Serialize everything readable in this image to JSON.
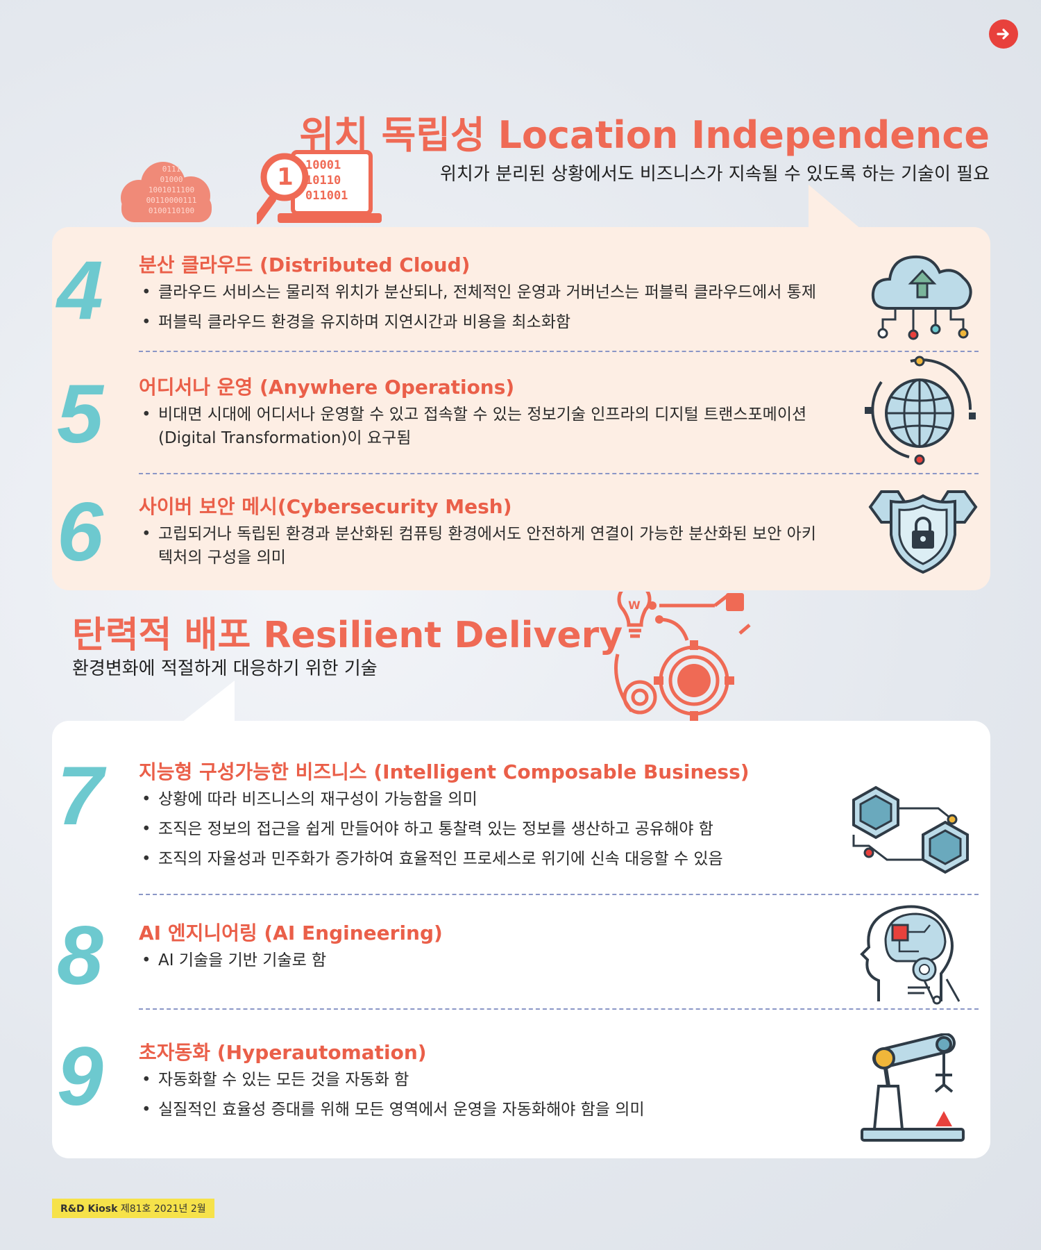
{
  "nav": {
    "next_icon": "arrow-right-icon"
  },
  "location": {
    "title": "위치 독립성 Location Independence",
    "subtitle": "위치가 분리된 상황에서도 비즈니스가 지속될 수 있도록 하는 기술이 필요",
    "illustration": {
      "binary_rows": [
        "10001",
        "10110",
        "011001"
      ],
      "cloud_rows": [
        "0111",
        "01000",
        "1001011100",
        "00110000111",
        "0100110100"
      ],
      "badge": "1"
    }
  },
  "items_location": [
    {
      "number": "4",
      "title": "분산 클라우드 (Distributed Cloud)",
      "bullets": [
        "클라우드 서비스는 물리적 위치가 분산되나, 전체적인 운영과 거버넌스는 퍼블릭 클라우드에서 통제",
        "퍼블릭 클라우드 환경을 유지하며 지연시간과 비용을 최소화함"
      ],
      "icon": "cloud-network-icon"
    },
    {
      "number": "5",
      "title": "어디서나 운영 (Anywhere Operations)",
      "bullets": [
        "비대면 시대에 어디서나 운영할 수 있고 접속할 수 있는 정보기술 인프라의 디지털 트랜스포메이션 (Digital Transformation)이 요구됨"
      ],
      "icon": "globe-network-icon"
    },
    {
      "number": "6",
      "title": "사이버 보안 메시(Cybersecurity Mesh)",
      "bullets": [
        "고립되거나 독립된 환경과 분산화된 컴퓨팅 환경에서도 안전하게 연결이 가능한 분산화된 보안 아키텍처의 구성을 의미"
      ],
      "icon": "shield-lock-icon"
    }
  ],
  "resilient": {
    "title": "탄력적 배포 Resilient Delivery",
    "subtitle": "환경변화에 적절하게 대응하기 위한 기술",
    "illustration": {
      "bulb_letter": "W"
    }
  },
  "items_resilient": [
    {
      "number": "7",
      "title": "지능형 구성가능한 비즈니스 (Intelligent Composable Business)",
      "bullets": [
        "상황에 따라 비즈니스의 재구성이 가능함을 의미",
        "조직은 정보의 접근을 쉽게 만들어야 하고 통찰력 있는 정보를 생산하고 공유해야 함",
        "조직의 자율성과 민주화가 증가하여 효율적인 프로세스로 위기에 신속 대응할 수 있음"
      ],
      "icon": "linked-cubes-icon"
    },
    {
      "number": "8",
      "title": "AI 엔지니어링 (AI Engineering)",
      "bullets": [
        "AI 기술을 기반 기술로 함"
      ],
      "icon": "ai-head-icon"
    },
    {
      "number": "9",
      "title": "초자동화 (Hyperautomation)",
      "bullets": [
        "자동화할 수 있는 모든 것을 자동화 함",
        "실질적인 효율성 증대를 위해 모든 영역에서 운영을 자동화해야 함을 의미"
      ],
      "icon": "robot-arm-icon"
    }
  ],
  "footer": {
    "brand": "R&D Kiosk",
    "issue": "제81호 2021년 2월"
  },
  "colors": {
    "accent": "#ef6a55",
    "teal": "#6dc9cf",
    "peach": "#fdeee4",
    "divider": "#8a96c6"
  }
}
